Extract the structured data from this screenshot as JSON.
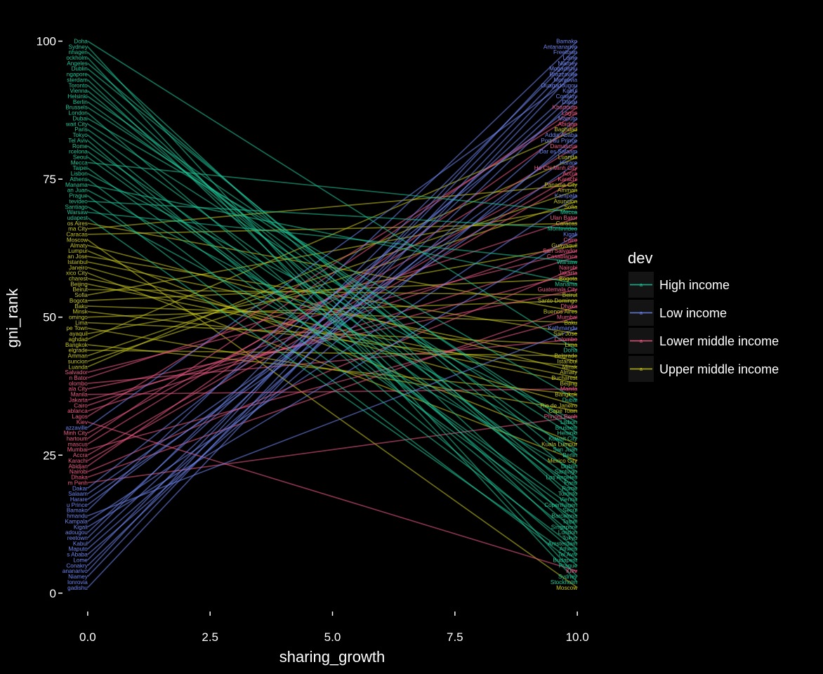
{
  "chart_data": {
    "type": "line",
    "xlabel": "sharing_growth",
    "ylabel": "gni_rank",
    "xlim": [
      -0.5,
      10.5
    ],
    "ylim": [
      -3.2,
      103
    ],
    "x_ticks": [
      0,
      2.5,
      5,
      7.5,
      10
    ],
    "x_tick_labels": [
      "0.0",
      "2.5",
      "5.0",
      "7.5",
      "10.0"
    ],
    "y_ticks": [
      0,
      25,
      50,
      75,
      100
    ],
    "y_tick_labels": [
      "0",
      "25",
      "50",
      "75",
      "100"
    ],
    "grid": false,
    "legend": {
      "title": "dev",
      "position": "right",
      "entries": [
        {
          "key": "high",
          "label": "High income"
        },
        {
          "key": "low",
          "label": "Low income"
        },
        {
          "key": "lower",
          "label": "Lower middle income"
        },
        {
          "key": "upper",
          "label": "Upper middle income"
        }
      ]
    },
    "colors": {
      "high": "#1fc89a",
      "low": "#6f86f0",
      "lower": "#f05a86",
      "upper": "#c8c81e"
    },
    "left_labels": [
      {
        "text": "Doha",
        "y": 100.0,
        "c": "high"
      },
      {
        "text": "Sydney",
        "y": 99.0,
        "c": "high"
      },
      {
        "text": "nhagen",
        "y": 98.0,
        "c": "high"
      },
      {
        "text": "ockholm",
        "y": 97.0,
        "c": "high"
      },
      {
        "text": "Angeles",
        "y": 96.0,
        "c": "high"
      },
      {
        "text": "Dublin",
        "y": 95.0,
        "c": "high"
      },
      {
        "text": "ngapore",
        "y": 94.0,
        "c": "high"
      },
      {
        "text": "sterdam",
        "y": 93.0,
        "c": "high"
      },
      {
        "text": "Toronto",
        "y": 92.0,
        "c": "high"
      },
      {
        "text": "Vienna",
        "y": 91.0,
        "c": "high"
      },
      {
        "text": "Helsinki",
        "y": 90.0,
        "c": "high"
      },
      {
        "text": "Berlin",
        "y": 89.0,
        "c": "high"
      },
      {
        "text": "Brussels",
        "y": 88.0,
        "c": "high"
      },
      {
        "text": "London",
        "y": 87.0,
        "c": "high"
      },
      {
        "text": "Dubai",
        "y": 86.0,
        "c": "high"
      },
      {
        "text": "wait City",
        "y": 85.0,
        "c": "high"
      },
      {
        "text": "Paris",
        "y": 84.0,
        "c": "high"
      },
      {
        "text": "Tokyo",
        "y": 83.0,
        "c": "high"
      },
      {
        "text": "Tel Aviv",
        "y": 82.0,
        "c": "high"
      },
      {
        "text": "Rome",
        "y": 81.0,
        "c": "high"
      },
      {
        "text": "rcelona",
        "y": 80.0,
        "c": "high"
      },
      {
        "text": "Seoul",
        "y": 79.0,
        "c": "high"
      },
      {
        "text": "Mecca",
        "y": 78.0,
        "c": "high"
      },
      {
        "text": "Taipei",
        "y": 77.0,
        "c": "high"
      },
      {
        "text": "Lisbon",
        "y": 76.0,
        "c": "high"
      },
      {
        "text": "Athens",
        "y": 75.0,
        "c": "high"
      },
      {
        "text": "Manama",
        "y": 74.0,
        "c": "high"
      },
      {
        "text": "an Juan",
        "y": 73.0,
        "c": "high"
      },
      {
        "text": "Prague",
        "y": 72.0,
        "c": "high"
      },
      {
        "text": "tevideo",
        "y": 71.0,
        "c": "high"
      },
      {
        "text": "Santiago",
        "y": 70.0,
        "c": "high"
      },
      {
        "text": "Warsaw",
        "y": 69.0,
        "c": "high"
      },
      {
        "text": "udapest",
        "y": 68.0,
        "c": "high"
      },
      {
        "text": "os Aires",
        "y": 67.0,
        "c": "upper"
      },
      {
        "text": "ma City",
        "y": 66.0,
        "c": "upper"
      },
      {
        "text": "Caracas",
        "y": 65.0,
        "c": "upper"
      },
      {
        "text": "Moscow",
        "y": 64.0,
        "c": "upper"
      },
      {
        "text": "Almaty",
        "y": 63.0,
        "c": "upper"
      },
      {
        "text": "Lumpur",
        "y": 62.0,
        "c": "upper"
      },
      {
        "text": "an Jose",
        "y": 61.0,
        "c": "upper"
      },
      {
        "text": "Istanbul",
        "y": 60.0,
        "c": "upper"
      },
      {
        "text": "Janeiro",
        "y": 59.0,
        "c": "upper"
      },
      {
        "text": "xico City",
        "y": 58.0,
        "c": "upper"
      },
      {
        "text": "charest",
        "y": 57.0,
        "c": "upper"
      },
      {
        "text": "Beijing",
        "y": 56.0,
        "c": "upper"
      },
      {
        "text": "Beirut",
        "y": 55.0,
        "c": "upper"
      },
      {
        "text": "Sofia",
        "y": 54.0,
        "c": "upper"
      },
      {
        "text": "Bogota",
        "y": 53.0,
        "c": "upper"
      },
      {
        "text": "Baku",
        "y": 52.0,
        "c": "upper"
      },
      {
        "text": "Minsk",
        "y": 51.0,
        "c": "upper"
      },
      {
        "text": "omingo",
        "y": 50.0,
        "c": "upper"
      },
      {
        "text": "Lima",
        "y": 49.0,
        "c": "upper"
      },
      {
        "text": "pe Town",
        "y": 48.0,
        "c": "upper"
      },
      {
        "text": "ayaquil",
        "y": 47.0,
        "c": "upper"
      },
      {
        "text": "aghdad",
        "y": 46.0,
        "c": "upper"
      },
      {
        "text": "Bangkok",
        "y": 45.0,
        "c": "upper"
      },
      {
        "text": "elgrade",
        "y": 44.0,
        "c": "upper"
      },
      {
        "text": "Amman",
        "y": 43.0,
        "c": "upper"
      },
      {
        "text": "suncion",
        "y": 42.0,
        "c": "upper"
      },
      {
        "text": "Luanda",
        "y": 41.0,
        "c": "upper"
      },
      {
        "text": "Salvador",
        "y": 40.0,
        "c": "lower"
      },
      {
        "text": "n Bator",
        "y": 39.0,
        "c": "lower"
      },
      {
        "text": "olombo",
        "y": 38.0,
        "c": "lower"
      },
      {
        "text": "ala City",
        "y": 37.0,
        "c": "lower"
      },
      {
        "text": "Manila",
        "y": 36.0,
        "c": "lower"
      },
      {
        "text": "Jakarta",
        "y": 35.0,
        "c": "lower"
      },
      {
        "text": "Cairo",
        "y": 34.0,
        "c": "lower"
      },
      {
        "text": "ablanca",
        "y": 33.0,
        "c": "lower"
      },
      {
        "text": "Lagos",
        "y": 32.0,
        "c": "lower"
      },
      {
        "text": "Kiev",
        "y": 31.0,
        "c": "lower"
      },
      {
        "text": "azzaville",
        "y": 30.0,
        "c": "low"
      },
      {
        "text": "Minh City",
        "y": 29.0,
        "c": "lower"
      },
      {
        "text": "hartoum",
        "y": 28.0,
        "c": "lower"
      },
      {
        "text": "mascus",
        "y": 27.0,
        "c": "lower"
      },
      {
        "text": "Mumbai",
        "y": 26.0,
        "c": "lower"
      },
      {
        "text": "Accra",
        "y": 25.0,
        "c": "lower"
      },
      {
        "text": "Karachi",
        "y": 24.0,
        "c": "lower"
      },
      {
        "text": "Abidjan",
        "y": 23.0,
        "c": "lower"
      },
      {
        "text": "Nairobi",
        "y": 22.0,
        "c": "lower"
      },
      {
        "text": "Dhaka",
        "y": 21.0,
        "c": "lower"
      },
      {
        "text": "m Penh",
        "y": 20.0,
        "c": "lower"
      },
      {
        "text": "Dakar",
        "y": 19.0,
        "c": "low"
      },
      {
        "text": "Salaam",
        "y": 18.0,
        "c": "low"
      },
      {
        "text": "Harare",
        "y": 17.0,
        "c": "low"
      },
      {
        "text": "u Prince",
        "y": 16.0,
        "c": "low"
      },
      {
        "text": "Bamako",
        "y": 15.0,
        "c": "low"
      },
      {
        "text": "hmandu",
        "y": 14.0,
        "c": "low"
      },
      {
        "text": "Kampala",
        "y": 13.0,
        "c": "low"
      },
      {
        "text": "Kigali",
        "y": 12.0,
        "c": "low"
      },
      {
        "text": "adougou",
        "y": 11.0,
        "c": "low"
      },
      {
        "text": "reetown",
        "y": 10.0,
        "c": "low"
      },
      {
        "text": "Kabul",
        "y": 9.0,
        "c": "low"
      },
      {
        "text": "Maputo",
        "y": 8.0,
        "c": "low"
      },
      {
        "text": "s Ababa",
        "y": 7.0,
        "c": "low"
      },
      {
        "text": "Lome",
        "y": 6.0,
        "c": "low"
      },
      {
        "text": "Conakry",
        "y": 5.0,
        "c": "low"
      },
      {
        "text": "ananarivo",
        "y": 4.0,
        "c": "low"
      },
      {
        "text": "Niamey",
        "y": 3.0,
        "c": "low"
      },
      {
        "text": "lonrovia",
        "y": 2.0,
        "c": "low"
      },
      {
        "text": "gadishu",
        "y": 1.0,
        "c": "low"
      }
    ],
    "right_labels": [
      {
        "text": "Bamako",
        "y": 100.0,
        "c": "low"
      },
      {
        "text": "Antananarivo",
        "y": 99.0,
        "c": "low"
      },
      {
        "text": "Freetown",
        "y": 98.0,
        "c": "low"
      },
      {
        "text": "Lome",
        "y": 97.0,
        "c": "low"
      },
      {
        "text": "Niamey",
        "y": 96.0,
        "c": "low"
      },
      {
        "text": "Mogadishu",
        "y": 95.0,
        "c": "low"
      },
      {
        "text": "Brazzaville",
        "y": 94.0,
        "c": "low"
      },
      {
        "text": "Monrovia",
        "y": 93.0,
        "c": "low"
      },
      {
        "text": "Ouagadougou",
        "y": 92.0,
        "c": "low"
      },
      {
        "text": "Kabul",
        "y": 91.0,
        "c": "low"
      },
      {
        "text": "Conakry",
        "y": 90.0,
        "c": "low"
      },
      {
        "text": "Dakar",
        "y": 89.0,
        "c": "low"
      },
      {
        "text": "Khartoum",
        "y": 88.0,
        "c": "lower"
      },
      {
        "text": "Lagos",
        "y": 87.0,
        "c": "lower"
      },
      {
        "text": "Maputo",
        "y": 86.0,
        "c": "low"
      },
      {
        "text": "Abidjan",
        "y": 85.0,
        "c": "lower"
      },
      {
        "text": "Baghdad",
        "y": 84.0,
        "c": "upper"
      },
      {
        "text": "Addis Ababa",
        "y": 83.0,
        "c": "low"
      },
      {
        "text": "Port au Prince",
        "y": 82.0,
        "c": "low"
      },
      {
        "text": "Damascus",
        "y": 81.0,
        "c": "lower"
      },
      {
        "text": "Dar es Salaam",
        "y": 80.0,
        "c": "low"
      },
      {
        "text": "Luanda",
        "y": 79.0,
        "c": "upper"
      },
      {
        "text": "Harare",
        "y": 78.0,
        "c": "low"
      },
      {
        "text": "Ho Chi Minh City",
        "y": 77.0,
        "c": "lower"
      },
      {
        "text": "Accra",
        "y": 76.0,
        "c": "lower"
      },
      {
        "text": "Karachi",
        "y": 75.0,
        "c": "lower"
      },
      {
        "text": "Panama City",
        "y": 74.0,
        "c": "upper"
      },
      {
        "text": "Amman",
        "y": 73.0,
        "c": "upper"
      },
      {
        "text": "Kampala",
        "y": 72.0,
        "c": "low"
      },
      {
        "text": "Asuncion",
        "y": 71.0,
        "c": "upper"
      },
      {
        "text": "Sofia",
        "y": 70.0,
        "c": "upper"
      },
      {
        "text": "Mecca",
        "y": 69.0,
        "c": "high"
      },
      {
        "text": "Ulan Bator",
        "y": 68.0,
        "c": "lower"
      },
      {
        "text": "Caracas",
        "y": 67.0,
        "c": "upper"
      },
      {
        "text": "Montevideo",
        "y": 66.0,
        "c": "high"
      },
      {
        "text": "Kigali",
        "y": 65.0,
        "c": "low"
      },
      {
        "text": "Cairo",
        "y": 64.0,
        "c": "lower"
      },
      {
        "text": "Guayaquil",
        "y": 63.0,
        "c": "upper"
      },
      {
        "text": "San Salvador",
        "y": 62.0,
        "c": "lower"
      },
      {
        "text": "Casablanca",
        "y": 61.0,
        "c": "lower"
      },
      {
        "text": "Warsaw",
        "y": 60.0,
        "c": "high"
      },
      {
        "text": "Nairobi",
        "y": 59.0,
        "c": "lower"
      },
      {
        "text": "Jakarta",
        "y": 58.0,
        "c": "lower"
      },
      {
        "text": "Bogota",
        "y": 57.0,
        "c": "upper"
      },
      {
        "text": "Manama",
        "y": 56.0,
        "c": "high"
      },
      {
        "text": "Guatemala City",
        "y": 55.0,
        "c": "lower"
      },
      {
        "text": "Beirut",
        "y": 54.0,
        "c": "upper"
      },
      {
        "text": "Santo Domingo",
        "y": 53.0,
        "c": "upper"
      },
      {
        "text": "Dhaka",
        "y": 52.0,
        "c": "lower"
      },
      {
        "text": "Buenos Aires",
        "y": 51.0,
        "c": "upper"
      },
      {
        "text": "Mumbai",
        "y": 50.0,
        "c": "lower"
      },
      {
        "text": "Baku",
        "y": 49.0,
        "c": "upper"
      },
      {
        "text": "Kathmandu",
        "y": 48.0,
        "c": "low"
      },
      {
        "text": "San Jose",
        "y": 47.0,
        "c": "upper"
      },
      {
        "text": "Colombo",
        "y": 46.0,
        "c": "lower"
      },
      {
        "text": "Lima",
        "y": 45.0,
        "c": "upper"
      },
      {
        "text": "Doha",
        "y": 44.0,
        "c": "high"
      },
      {
        "text": "Belgrade",
        "y": 43.0,
        "c": "upper"
      },
      {
        "text": "Istanbul",
        "y": 42.0,
        "c": "upper"
      },
      {
        "text": "Minsk",
        "y": 41.0,
        "c": "upper"
      },
      {
        "text": "Almaty",
        "y": 40.0,
        "c": "upper"
      },
      {
        "text": "Bucharest",
        "y": 39.0,
        "c": "upper"
      },
      {
        "text": "Beijing",
        "y": 38.0,
        "c": "upper"
      },
      {
        "text": "Manila",
        "y": 37.0,
        "c": "lower"
      },
      {
        "text": "Bangkok",
        "y": 36.0,
        "c": "upper"
      },
      {
        "text": "Dubai",
        "y": 35.0,
        "c": "high"
      },
      {
        "text": "Rio de Janeiro",
        "y": 34.0,
        "c": "upper"
      },
      {
        "text": "Cape Town",
        "y": 33.0,
        "c": "upper"
      },
      {
        "text": "Phnom Penh",
        "y": 32.0,
        "c": "lower"
      },
      {
        "text": "Lisbon",
        "y": 31.0,
        "c": "high"
      },
      {
        "text": "Brussels",
        "y": 30.0,
        "c": "high"
      },
      {
        "text": "Helsinki",
        "y": 29.0,
        "c": "high"
      },
      {
        "text": "Kuwait City",
        "y": 28.0,
        "c": "high"
      },
      {
        "text": "Kuala Lumpur",
        "y": 27.0,
        "c": "upper"
      },
      {
        "text": "San Juan",
        "y": 26.0,
        "c": "high"
      },
      {
        "text": "Berlin",
        "y": 25.0,
        "c": "high"
      },
      {
        "text": "Mexico City",
        "y": 24.0,
        "c": "upper"
      },
      {
        "text": "Dublin",
        "y": 23.0,
        "c": "high"
      },
      {
        "text": "Santiago",
        "y": 22.0,
        "c": "high"
      },
      {
        "text": "Los Angeles",
        "y": 21.0,
        "c": "high"
      },
      {
        "text": "Paris",
        "y": 20.0,
        "c": "high"
      },
      {
        "text": "Rome",
        "y": 19.0,
        "c": "high"
      },
      {
        "text": "Toronto",
        "y": 18.0,
        "c": "high"
      },
      {
        "text": "Vienna",
        "y": 17.0,
        "c": "high"
      },
      {
        "text": "Copenhagen",
        "y": 16.0,
        "c": "high"
      },
      {
        "text": "Seoul",
        "y": 15.0,
        "c": "high"
      },
      {
        "text": "Barcelona",
        "y": 14.0,
        "c": "high"
      },
      {
        "text": "Taipei",
        "y": 13.0,
        "c": "high"
      },
      {
        "text": "Singapore",
        "y": 12.0,
        "c": "high"
      },
      {
        "text": "London",
        "y": 11.0,
        "c": "high"
      },
      {
        "text": "Tokyo",
        "y": 10.0,
        "c": "high"
      },
      {
        "text": "Amsterdam",
        "y": 9.0,
        "c": "high"
      },
      {
        "text": "Athens",
        "y": 8.0,
        "c": "high"
      },
      {
        "text": "Tel Aviv",
        "y": 7.0,
        "c": "high"
      },
      {
        "text": "Budapest",
        "y": 6.0,
        "c": "high"
      },
      {
        "text": "Prague",
        "y": 5.0,
        "c": "high"
      },
      {
        "text": "Kiev",
        "y": 4.0,
        "c": "lower"
      },
      {
        "text": "Sydney",
        "y": 3.0,
        "c": "high"
      },
      {
        "text": "Stockholm",
        "y": 2.0,
        "c": "high"
      },
      {
        "text": "Moscow",
        "y": 1.0,
        "c": "upper"
      }
    ]
  }
}
